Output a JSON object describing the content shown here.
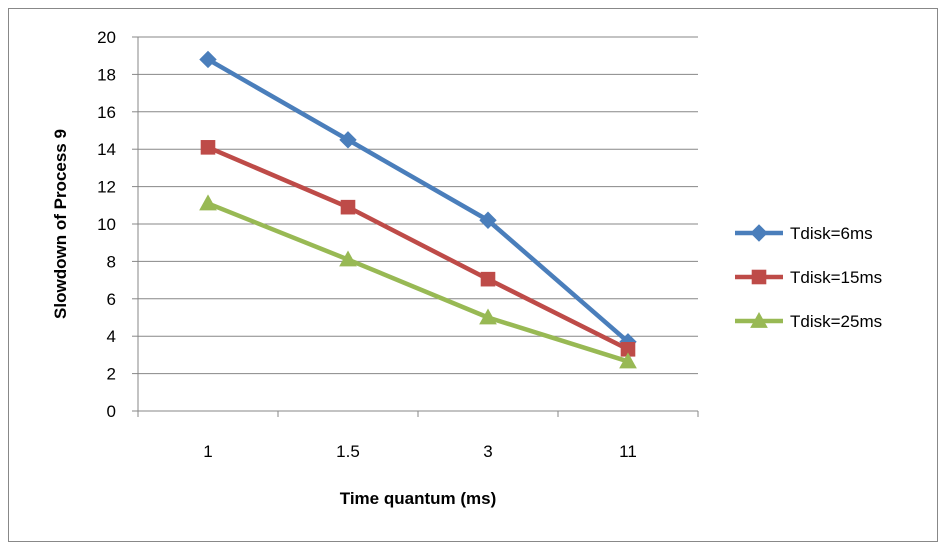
{
  "chart_data": {
    "type": "line",
    "xlabel": "Time quantum (ms)",
    "ylabel": "Slowdown of Process 9",
    "categories": [
      "1",
      "1.5",
      "3",
      "11"
    ],
    "ylim": [
      0,
      20
    ],
    "yticks": [
      0,
      2,
      4,
      6,
      8,
      10,
      12,
      14,
      16,
      18,
      20
    ],
    "grid": "horizontal",
    "legend_position": "right",
    "series": [
      {
        "name": "Tdisk=6ms",
        "values": [
          18.8,
          14.5,
          10.2,
          3.7
        ],
        "color": "#4a7ebb",
        "marker": "diamond"
      },
      {
        "name": "Tdisk=15ms",
        "values": [
          14.1,
          10.9,
          7.05,
          3.3
        ],
        "color": "#be4b48",
        "marker": "square"
      },
      {
        "name": "Tdisk=25ms",
        "values": [
          11.1,
          8.1,
          5.0,
          2.65
        ],
        "color": "#98b954",
        "marker": "triangle"
      }
    ]
  }
}
